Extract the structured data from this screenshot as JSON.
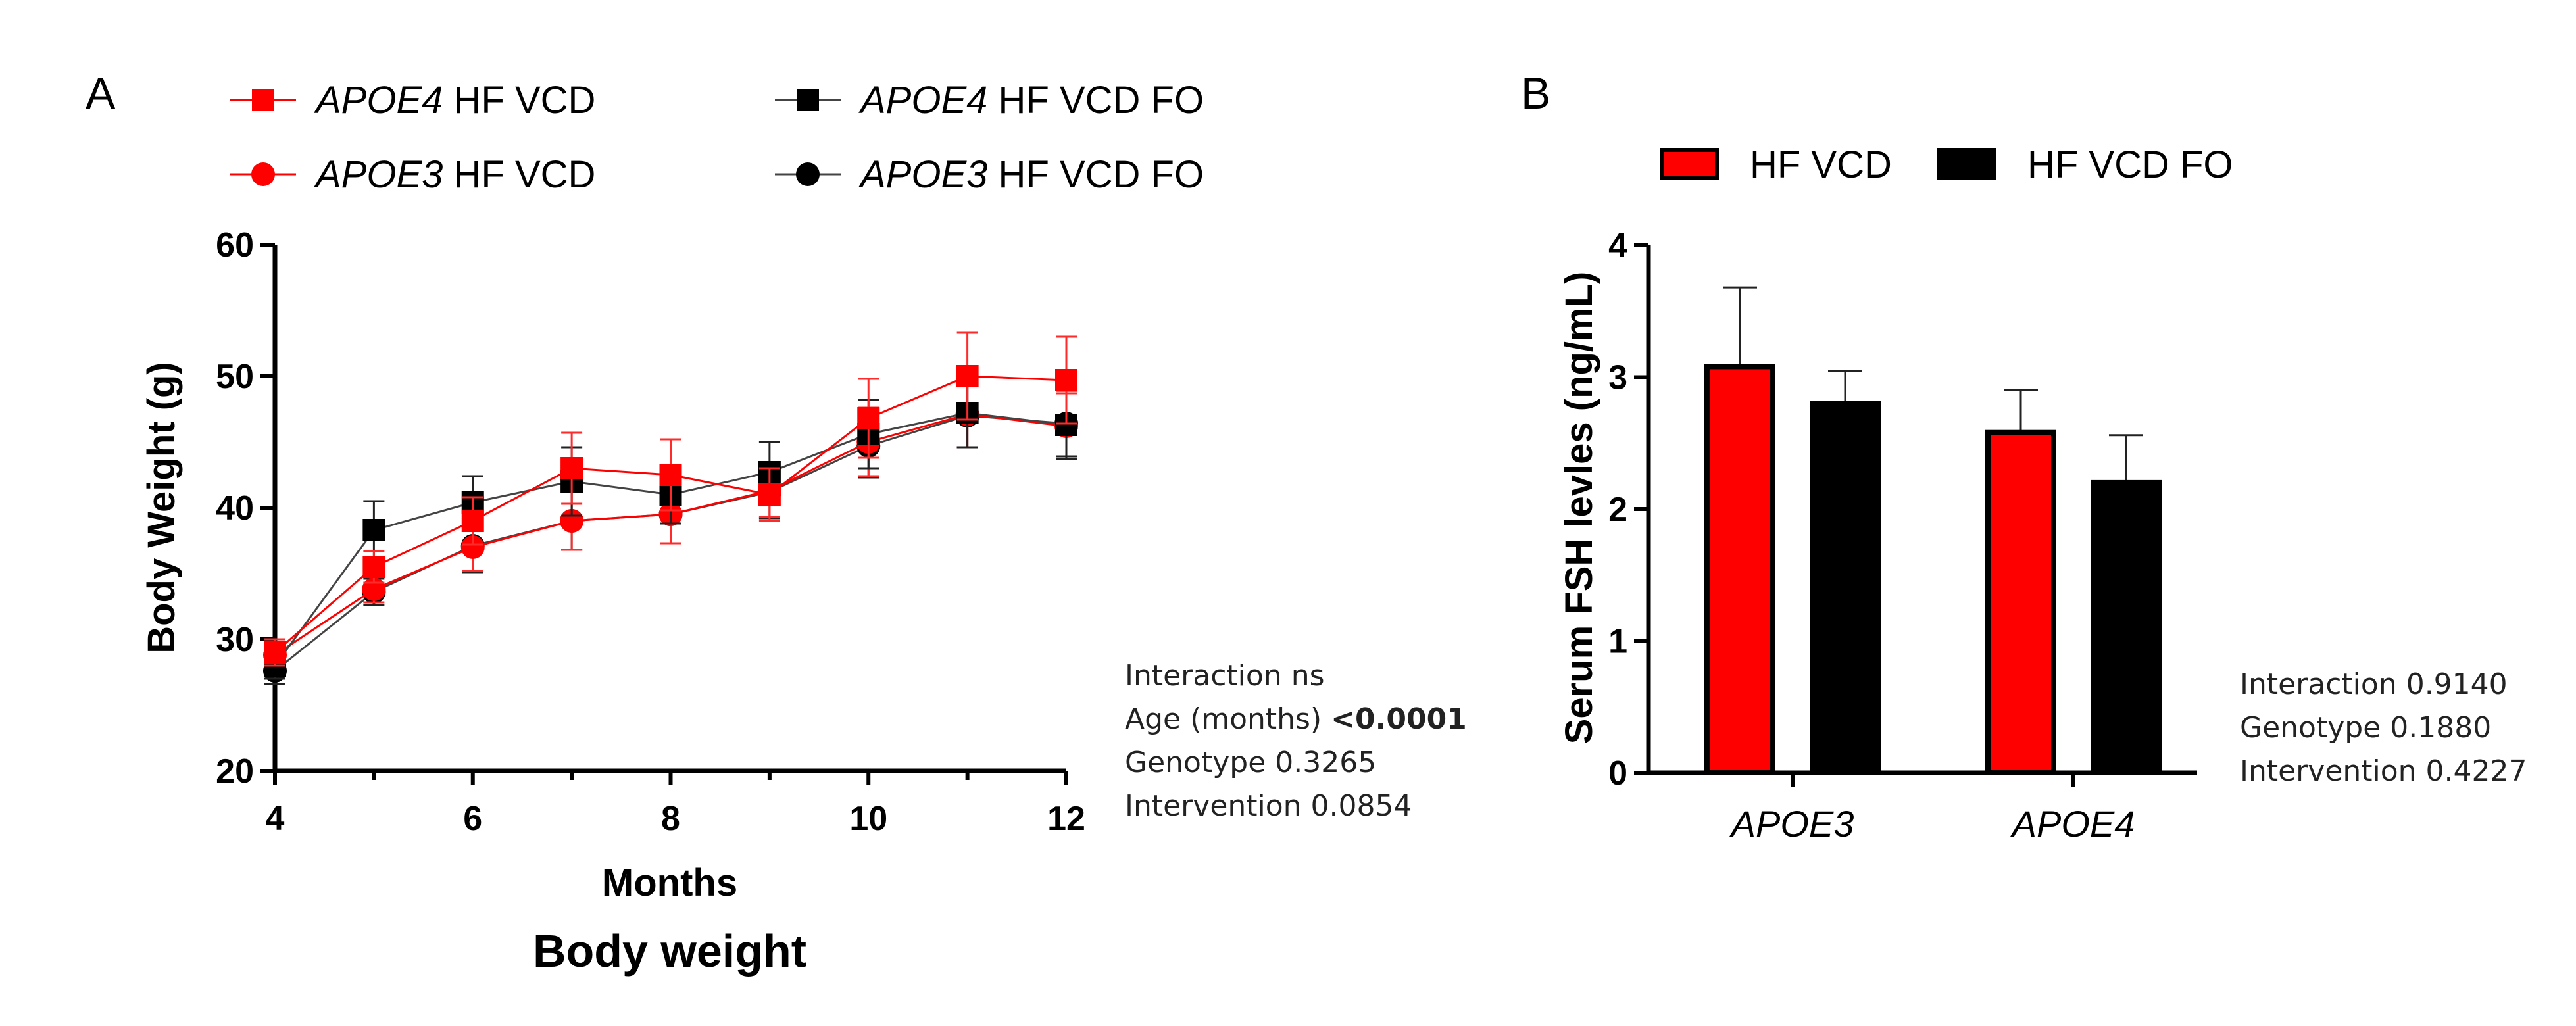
{
  "colors": {
    "red": "#ff0000",
    "black": "#000000"
  },
  "panelA": {
    "letter": "A",
    "chart_data": {
      "type": "line",
      "title": "Body weight",
      "xlabel": "Months",
      "ylabel": "Body Weight (g)",
      "xlim": [
        4,
        12
      ],
      "ylim": [
        20,
        60
      ],
      "xticks": [
        4,
        6,
        8,
        10,
        12
      ],
      "yticks": [
        20,
        30,
        40,
        50,
        60
      ],
      "series": [
        {
          "name_italic": "APOE4",
          "name_rest": " HF VCD",
          "color": "#ff0000",
          "marker": "square",
          "x": [
            4,
            5,
            6,
            7,
            8,
            9,
            10,
            11,
            12
          ],
          "y": [
            29.0,
            35.5,
            39.0,
            43.0,
            42.5,
            41.0,
            46.8,
            50.0,
            49.7
          ],
          "err": [
            1.0,
            1.2,
            1.8,
            2.7,
            2.7,
            2.0,
            3.0,
            3.3,
            3.3
          ]
        },
        {
          "name_italic": "APOE4",
          "name_rest": " HF VCD FO",
          "color": "#000000",
          "marker": "square",
          "x": [
            4,
            5,
            6,
            7,
            8,
            9,
            10,
            11,
            12
          ],
          "y": [
            28.0,
            38.3,
            40.4,
            42.0,
            41.0,
            42.7,
            45.6,
            47.2,
            46.3
          ],
          "err": [
            1.0,
            2.2,
            2.0,
            2.6,
            2.2,
            2.3,
            2.6,
            2.6,
            2.6
          ]
        },
        {
          "name_italic": "APOE3",
          "name_rest": " HF VCD",
          "color": "#ff0000",
          "marker": "circle",
          "x": [
            4,
            5,
            6,
            7,
            8,
            9,
            10,
            11,
            12
          ],
          "y": [
            28.8,
            33.8,
            37.0,
            39.0,
            39.5,
            41.3,
            45.0,
            47.1,
            46.2
          ],
          "err": [
            1.0,
            1.0,
            1.8,
            2.2,
            2.2,
            2.0,
            2.6,
            2.5,
            2.5
          ]
        },
        {
          "name_italic": "APOE3",
          "name_rest": " HF VCD FO",
          "color": "#000000",
          "marker": "circle",
          "x": [
            4,
            5,
            6,
            7,
            8,
            9,
            10,
            11,
            12
          ],
          "y": [
            27.6,
            33.6,
            37.1,
            39.0,
            39.5,
            41.2,
            44.7,
            47.0,
            46.4
          ],
          "err": [
            1.0,
            1.0,
            2.0,
            2.2,
            2.2,
            2.0,
            2.4,
            2.4,
            2.5
          ]
        }
      ]
    },
    "stats": {
      "interaction": "Interaction ns",
      "age_label": "Age (months) ",
      "age_value": "<0.0001",
      "genotype": "Genotype  0.3265",
      "intervention": "Intervention 0.0854"
    }
  },
  "panelB": {
    "letter": "B",
    "chart_data": {
      "type": "bar",
      "ylabel": "Serum FSH levles (ng/mL)",
      "categories": [
        "APOE3",
        "APOE4"
      ],
      "ylim": [
        0,
        4
      ],
      "yticks": [
        0,
        1,
        2,
        3,
        4
      ],
      "series": [
        {
          "name": "HF VCD",
          "color": "#ff0000",
          "values": [
            3.08,
            2.58
          ],
          "err": [
            0.6,
            0.32
          ]
        },
        {
          "name": "HF VCD FO",
          "color": "#000000",
          "values": [
            2.8,
            2.2
          ],
          "err": [
            0.25,
            0.36
          ]
        }
      ]
    },
    "stats": {
      "interaction": "Interaction 0.9140",
      "genotype": "Genotype  0.1880",
      "intervention": "Intervention 0.4227"
    }
  }
}
